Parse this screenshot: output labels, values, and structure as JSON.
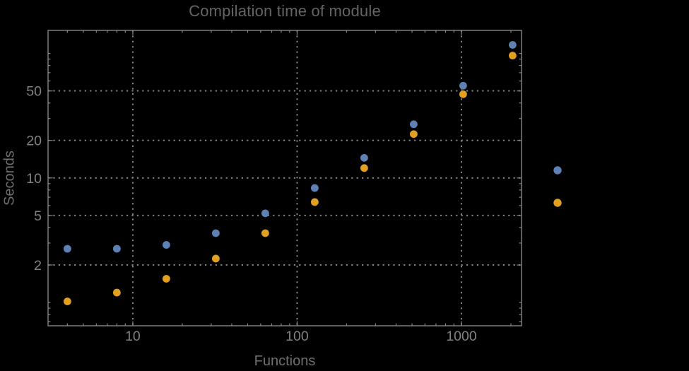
{
  "background": "#000000",
  "chart_data": {
    "type": "scatter",
    "title": "Compilation time of module",
    "xlabel": "Functions",
    "ylabel": "Seconds",
    "x_scale": "log",
    "y_scale": "log",
    "grid": true,
    "grid_style": "dotted",
    "x_range": [
      3.05,
      2320
    ],
    "y_range": [
      0.65,
      153
    ],
    "x_ticks": [
      10,
      100,
      1000
    ],
    "y_ticks": [
      2,
      5,
      10,
      20,
      50
    ],
    "x": [
      4,
      8,
      16,
      32,
      64,
      128,
      256,
      512,
      1024,
      2048
    ],
    "series": [
      {
        "name": "series-1-blue",
        "color": "#5E81B5",
        "values": [
          2.7,
          2.7,
          2.9,
          3.6,
          5.2,
          8.3,
          14.5,
          27,
          55,
          117
        ]
      },
      {
        "name": "series-2-orange",
        "color": "#E2A021",
        "values": [
          1.02,
          1.2,
          1.55,
          2.25,
          3.6,
          6.4,
          12,
          22.5,
          47,
          96
        ]
      }
    ],
    "legend": {
      "position": "outside-right",
      "labels_visible": false,
      "markers": [
        {
          "series": "series-1-blue",
          "color": "#5E81B5"
        },
        {
          "series": "series-2-orange",
          "color": "#E2A021"
        }
      ]
    },
    "style": {
      "frame_color": "#868686",
      "grid_color": "#8a8a8a",
      "tick_label_color": "#828282",
      "axis_label_color": "#6f6f6f",
      "title_color": "#646464",
      "point_radius": 5.4
    }
  }
}
